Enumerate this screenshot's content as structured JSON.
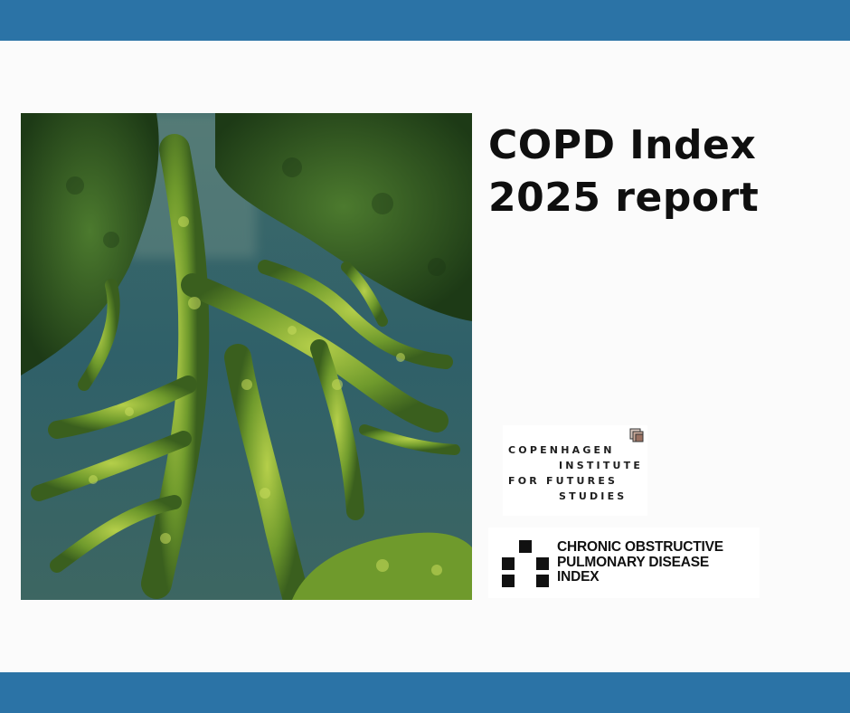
{
  "title": {
    "line1": "COPD Index",
    "line2": "2025 report"
  },
  "photo": {
    "icon": "aerial-forest-river-image"
  },
  "logo_cifs": {
    "line1": "COPENHAGEN",
    "line2": "INSTITUTE",
    "line3": "FOR FUTURES",
    "line4": "STUDIES",
    "icon": "cifs-logo-mark-icon"
  },
  "logo_copd": {
    "line1": "CHRONIC OBSTRUCTIVE",
    "line2": "PULMONARY DISEASE",
    "line3": "INDEX",
    "icon": "copd-index-blocks-icon"
  },
  "colors": {
    "band": "#2b73a6",
    "background": "#fbfbfb",
    "title": "#0f0f0f"
  }
}
